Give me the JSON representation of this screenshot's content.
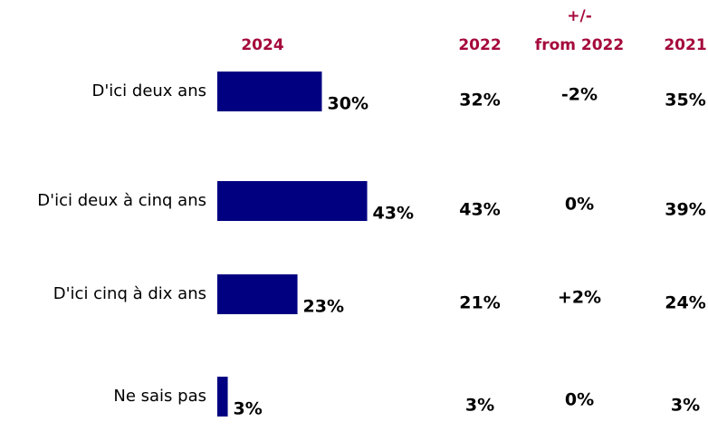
{
  "chart_data": {
    "type": "bar",
    "orientation": "horizontal",
    "series_header": "2024",
    "categories": [
      "D'ici deux ans",
      "D'ici deux à cinq ans",
      "D'ici cinq à dix ans",
      "Ne sais pas"
    ],
    "values": [
      30,
      43,
      23,
      3
    ],
    "value_labels": [
      "30%",
      "43%",
      "23%",
      "3%"
    ],
    "color": "#000080",
    "header_color": "#a50a3b",
    "table_columns": [
      {
        "header": [
          "2022"
        ],
        "cells": [
          "32%",
          "43%",
          "21%",
          "3%"
        ]
      },
      {
        "header": [
          "+/-",
          "from 2022"
        ],
        "cells": [
          "-2%",
          "0%",
          "+2%",
          "0%"
        ]
      },
      {
        "header": [
          "2021"
        ],
        "cells": [
          "35%",
          "39%",
          "24%",
          "3%"
        ]
      }
    ]
  }
}
